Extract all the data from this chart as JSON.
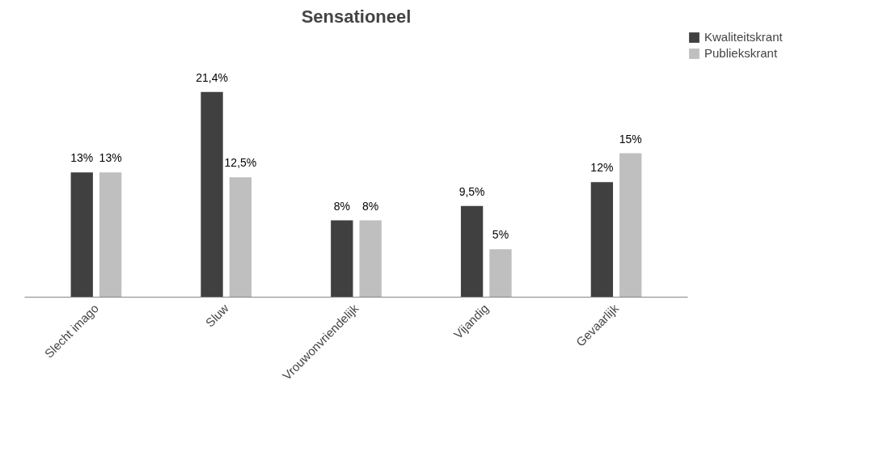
{
  "chart_data": {
    "type": "bar",
    "title": "Sensationeel",
    "categories": [
      "Slecht imago",
      "Sluw",
      "Vrouwonvriendelijk",
      "Vijandig",
      "Gevaarlijk"
    ],
    "series": [
      {
        "name": "Kwaliteitskrant",
        "color": "#404040",
        "values": [
          13,
          21.4,
          8,
          9.5,
          12
        ],
        "value_labels": [
          "13%",
          "21,4%",
          "8%",
          "9,5%",
          "12%"
        ]
      },
      {
        "name": "Publiekskrant",
        "color": "#bfbfbf",
        "values": [
          13,
          12.5,
          8,
          5,
          15
        ],
        "value_labels": [
          "13%",
          "12,5%",
          "8%",
          "5%",
          "15%"
        ]
      }
    ],
    "legend": "right",
    "grid": false
  }
}
